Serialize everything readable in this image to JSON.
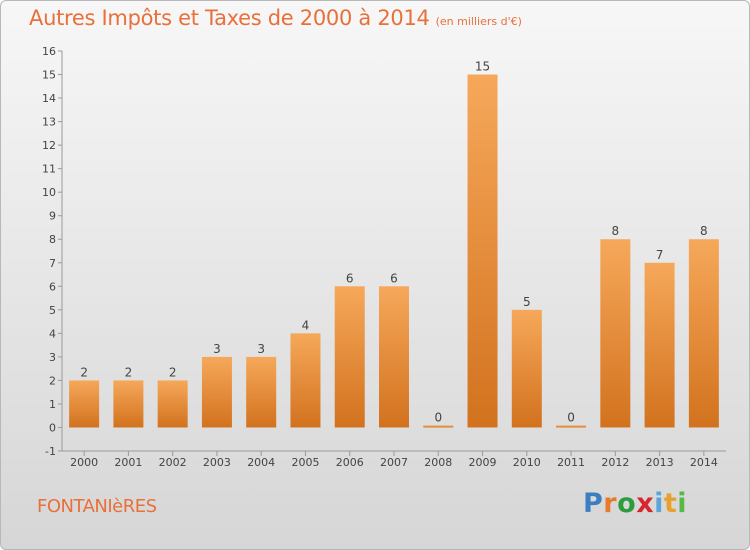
{
  "title": "Autres Impôts et Taxes de 2000 à 2014",
  "unit_note": "(en milliers d'€)",
  "commune": "FONTANIèRES",
  "brand": {
    "letters": [
      "P",
      "r",
      "o",
      "x",
      "i",
      "t",
      "i"
    ],
    "colors": [
      "#3c7fc1",
      "#e87a2c",
      "#2e9b3c",
      "#d9262e",
      "#5aa6d6",
      "#e8a12c",
      "#58b947"
    ]
  },
  "colors": {
    "bar_light": "#f6a85a",
    "bar_dark": "#d2721e",
    "accent": "#e8703a"
  },
  "chart_data": {
    "type": "bar",
    "title": "Autres Impôts et Taxes de 2000 à 2014",
    "categories": [
      "2000",
      "2001",
      "2002",
      "2003",
      "2004",
      "2005",
      "2006",
      "2007",
      "2008",
      "2009",
      "2010",
      "2011",
      "2012",
      "2013",
      "2014"
    ],
    "values": [
      2,
      2,
      2,
      3,
      3,
      4,
      6,
      6,
      0,
      15,
      5,
      0,
      8,
      7,
      8
    ],
    "ylim": [
      -1,
      16
    ],
    "yticks": [
      -1,
      0,
      1,
      2,
      3,
      4,
      5,
      6,
      7,
      8,
      9,
      10,
      11,
      12,
      13,
      14,
      15,
      16
    ],
    "grid": false,
    "xlabel": "",
    "ylabel": ""
  }
}
